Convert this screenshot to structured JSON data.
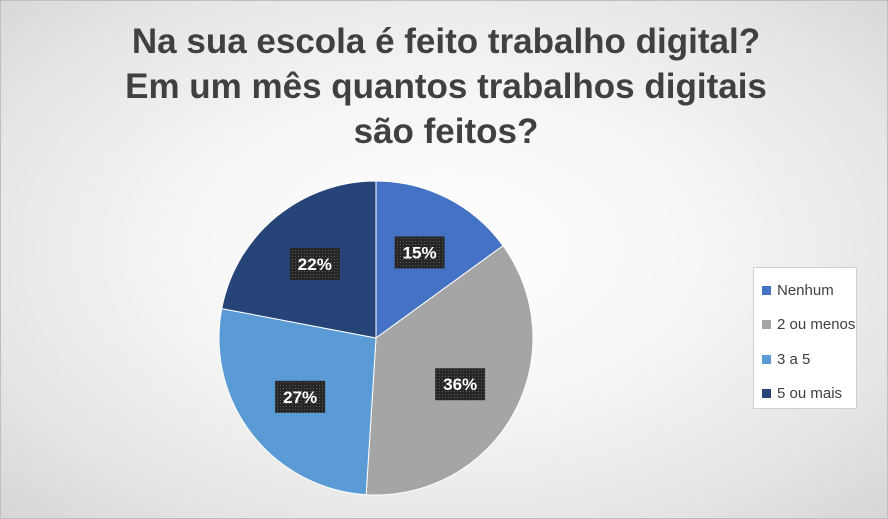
{
  "chart_data": {
    "type": "pie",
    "title": "Na sua escola é feito trabalho digital? Em um mês quantos trabalhos digitais são feitos?",
    "categories": [
      "Nenhum",
      "2 ou menos",
      "3 a 5",
      "5 ou mais"
    ],
    "values": [
      15,
      36,
      27,
      22
    ],
    "value_labels": [
      "15%",
      "36%",
      "27%",
      "22%"
    ],
    "unit": "%",
    "colors": [
      "#4472c4",
      "#a5a5a5",
      "#5b9bd5",
      "#264478"
    ],
    "legend": "right",
    "start_angle": "top, clockwise"
  }
}
